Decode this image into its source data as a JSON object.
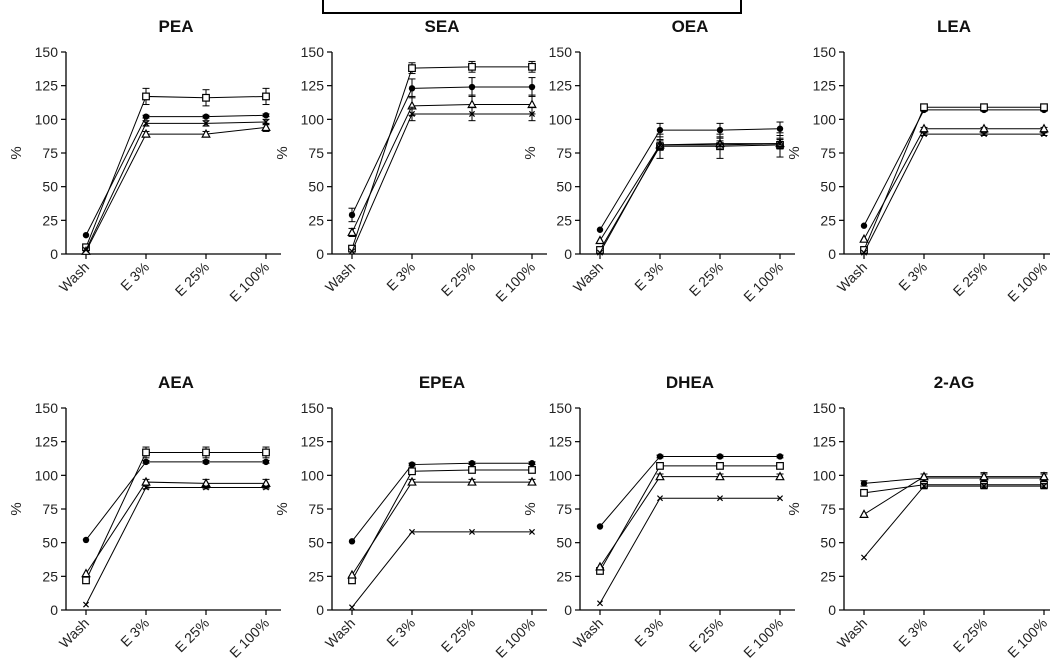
{
  "figure": {
    "ylabel": "%",
    "categories": [
      "Wash",
      "E 3%",
      "E 25%",
      "E 100%"
    ],
    "yticks": [
      0,
      25,
      50,
      75,
      100,
      125,
      150
    ]
  },
  "chart_data": [
    {
      "type": "line",
      "title": "PEA",
      "ylabel": "%",
      "categories": [
        "Wash",
        "E 3%",
        "E 25%",
        "E 100%"
      ],
      "ylim": [
        0,
        150
      ],
      "series": [
        {
          "marker": "circle",
          "values": [
            14,
            102,
            102,
            103
          ],
          "errors": [
            0,
            1,
            1,
            1
          ]
        },
        {
          "marker": "square",
          "values": [
            5,
            117,
            116,
            117
          ],
          "errors": [
            0,
            6,
            6,
            6
          ]
        },
        {
          "marker": "triangle",
          "values": [
            2,
            89,
            89,
            94
          ],
          "errors": [
            0,
            2,
            2,
            3
          ]
        },
        {
          "marker": "cross",
          "values": [
            3,
            97,
            97,
            98
          ],
          "errors": [
            0,
            2,
            2,
            2
          ]
        }
      ]
    },
    {
      "type": "line",
      "title": "SEA",
      "ylabel": "%",
      "categories": [
        "Wash",
        "E 3%",
        "E 25%",
        "E 100%"
      ],
      "ylim": [
        0,
        150
      ],
      "series": [
        {
          "marker": "circle",
          "values": [
            29,
            123,
            124,
            124
          ],
          "errors": [
            5,
            7,
            7,
            7
          ]
        },
        {
          "marker": "square",
          "values": [
            4,
            138,
            139,
            139
          ],
          "errors": [
            2,
            4,
            4,
            4
          ]
        },
        {
          "marker": "triangle",
          "values": [
            16,
            110,
            111,
            111
          ],
          "errors": [
            3,
            7,
            7,
            7
          ]
        },
        {
          "marker": "cross",
          "values": [
            2,
            104,
            104,
            104
          ],
          "errors": [
            0,
            5,
            5,
            5
          ]
        }
      ]
    },
    {
      "type": "line",
      "title": "OEA",
      "ylabel": "%",
      "categories": [
        "Wash",
        "E 3%",
        "E 25%",
        "E 100%"
      ],
      "ylim": [
        0,
        150
      ],
      "series": [
        {
          "marker": "circle",
          "values": [
            18,
            92,
            92,
            93
          ],
          "errors": [
            0,
            5,
            5,
            5
          ]
        },
        {
          "marker": "square",
          "values": [
            3,
            80,
            80,
            81
          ],
          "errors": [
            0,
            9,
            9,
            9
          ]
        },
        {
          "marker": "triangle",
          "values": [
            10,
            81,
            82,
            82
          ],
          "errors": [
            0,
            4,
            4,
            4
          ]
        },
        {
          "marker": "cross",
          "values": [
            1,
            81,
            81,
            82
          ],
          "errors": [
            0,
            3,
            3,
            3
          ]
        }
      ]
    },
    {
      "type": "line",
      "title": "LEA",
      "ylabel": "%",
      "categories": [
        "Wash",
        "E 3%",
        "E 25%",
        "E 100%"
      ],
      "ylim": [
        0,
        150
      ],
      "series": [
        {
          "marker": "circle",
          "values": [
            21,
            107,
            107,
            107
          ],
          "errors": [
            0,
            1,
            1,
            1
          ]
        },
        {
          "marker": "square",
          "values": [
            3,
            109,
            109,
            109
          ],
          "errors": [
            0,
            2,
            2,
            2
          ]
        },
        {
          "marker": "triangle",
          "values": [
            11,
            93,
            93,
            93
          ],
          "errors": [
            0,
            1,
            1,
            1
          ]
        },
        {
          "marker": "cross",
          "values": [
            1,
            89,
            89,
            89
          ],
          "errors": [
            0,
            1,
            1,
            1
          ]
        }
      ]
    },
    {
      "type": "line",
      "title": "AEA",
      "ylabel": "%",
      "categories": [
        "Wash",
        "E 3%",
        "E 25%",
        "E 100%"
      ],
      "ylim": [
        0,
        150
      ],
      "series": [
        {
          "marker": "circle",
          "values": [
            52,
            110,
            110,
            110
          ],
          "errors": [
            0,
            1,
            1,
            1
          ]
        },
        {
          "marker": "square",
          "values": [
            22,
            117,
            117,
            117
          ],
          "errors": [
            0,
            4,
            4,
            4
          ]
        },
        {
          "marker": "triangle",
          "values": [
            27,
            95,
            94,
            94
          ],
          "errors": [
            0,
            2,
            3,
            3
          ]
        },
        {
          "marker": "cross",
          "values": [
            4,
            91,
            91,
            91
          ],
          "errors": [
            0,
            1,
            1,
            1
          ]
        }
      ]
    },
    {
      "type": "line",
      "title": "EPEA",
      "ylabel": "%",
      "categories": [
        "Wash",
        "E 3%",
        "E 25%",
        "E 100%"
      ],
      "ylim": [
        0,
        150
      ],
      "series": [
        {
          "marker": "circle",
          "values": [
            51,
            108,
            109,
            109
          ],
          "errors": [
            0,
            1,
            1,
            1
          ]
        },
        {
          "marker": "square",
          "values": [
            22,
            103,
            104,
            104
          ],
          "errors": [
            0,
            2,
            2,
            2
          ]
        },
        {
          "marker": "triangle",
          "values": [
            26,
            95,
            95,
            95
          ],
          "errors": [
            0,
            2,
            2,
            2
          ]
        },
        {
          "marker": "cross",
          "values": [
            2,
            58,
            58,
            58
          ],
          "errors": [
            0,
            0,
            0,
            0
          ]
        }
      ]
    },
    {
      "type": "line",
      "title": "DHEA",
      "ylabel": "%",
      "categories": [
        "Wash",
        "E 3%",
        "E 25%",
        "E 100%"
      ],
      "ylim": [
        0,
        150
      ],
      "series": [
        {
          "marker": "circle",
          "values": [
            62,
            114,
            114,
            114
          ],
          "errors": [
            0,
            1,
            1,
            1
          ]
        },
        {
          "marker": "square",
          "values": [
            29,
            107,
            107,
            107
          ],
          "errors": [
            0,
            2,
            2,
            2
          ]
        },
        {
          "marker": "triangle",
          "values": [
            32,
            99,
            99,
            99
          ],
          "errors": [
            0,
            2,
            2,
            2
          ]
        },
        {
          "marker": "cross",
          "values": [
            5,
            83,
            83,
            83
          ],
          "errors": [
            0,
            0,
            0,
            0
          ]
        }
      ]
    },
    {
      "type": "line",
      "title": "2-AG",
      "ylabel": "%",
      "categories": [
        "Wash",
        "E 3%",
        "E 25%",
        "E 100%"
      ],
      "ylim": [
        0,
        150
      ],
      "series": [
        {
          "marker": "circle",
          "values": [
            94,
            98,
            98,
            98
          ],
          "errors": [
            2,
            3,
            3,
            3
          ]
        },
        {
          "marker": "square",
          "values": [
            87,
            93,
            93,
            93
          ],
          "errors": [
            0,
            2,
            2,
            2
          ]
        },
        {
          "marker": "triangle",
          "values": [
            71,
            99,
            99,
            99
          ],
          "errors": [
            0,
            2,
            3,
            3
          ]
        },
        {
          "marker": "cross",
          "values": [
            39,
            92,
            92,
            92
          ],
          "errors": [
            0,
            2,
            2,
            2
          ]
        }
      ]
    }
  ]
}
